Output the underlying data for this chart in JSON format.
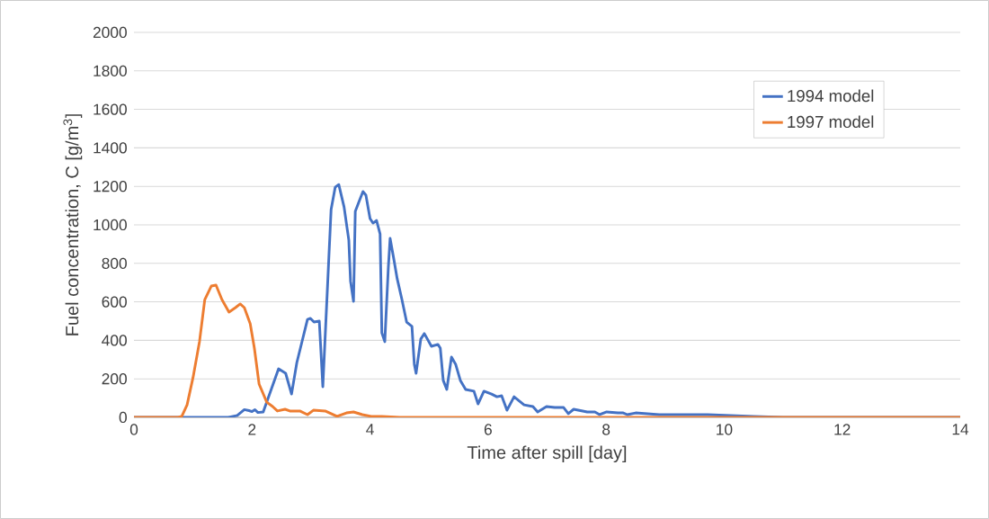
{
  "chart_data": {
    "type": "line",
    "xlabel": "Time after spill [day]",
    "ylabel": "Fuel concentration, C [g/m$^{3}$]",
    "xlim": [
      0,
      14
    ],
    "ylim": [
      0,
      2000
    ],
    "xticks": [
      0,
      2,
      4,
      6,
      8,
      10,
      12,
      14
    ],
    "yticks": [
      0,
      200,
      400,
      600,
      800,
      1000,
      1200,
      1400,
      1600,
      1800,
      2000
    ],
    "grid": "y",
    "legend": "top right",
    "line_style": "solid",
    "marker": "none",
    "series": [
      {
        "name": "1994 model",
        "color": "#4472c4",
        "x": [
          0,
          1.6,
          1.75,
          1.87,
          1.95,
          2.0,
          2.05,
          2.1,
          2.19,
          2.45,
          2.57,
          2.67,
          2.76,
          2.94,
          2.99,
          3.05,
          3.14,
          3.2,
          3.34,
          3.41,
          3.47,
          3.56,
          3.64,
          3.67,
          3.72,
          3.75,
          3.82,
          3.88,
          3.93,
          4.0,
          4.05,
          4.11,
          4.17,
          4.2,
          4.25,
          4.31,
          4.34,
          4.4,
          4.46,
          4.54,
          4.62,
          4.71,
          4.75,
          4.78,
          4.86,
          4.92,
          5.04,
          5.15,
          5.19,
          5.24,
          5.3,
          5.38,
          5.45,
          5.53,
          5.62,
          5.76,
          5.83,
          5.93,
          6.06,
          6.15,
          6.23,
          6.32,
          6.44,
          6.61,
          6.76,
          6.84,
          6.99,
          7.13,
          7.28,
          7.36,
          7.45,
          7.68,
          7.81,
          7.89,
          8.01,
          8.2,
          8.29,
          8.36,
          8.5,
          8.9,
          9.11,
          9.72,
          10.5,
          11,
          14
        ],
        "values": [
          0,
          0,
          10,
          40,
          35,
          30,
          40,
          25,
          28,
          252,
          229,
          121,
          285,
          509,
          514,
          495,
          500,
          159,
          1079,
          1196,
          1210,
          1093,
          921,
          706,
          603,
          1070,
          1126,
          1173,
          1154,
          1033,
          1009,
          1023,
          953,
          439,
          393,
          780,
          930,
          827,
          720,
          612,
          495,
          472,
          276,
          229,
          407,
          435,
          369,
          379,
          360,
          192,
          145,
          313,
          276,
          192,
          145,
          136,
          70,
          136,
          121,
          107,
          112,
          37,
          107,
          65,
          56,
          28,
          56,
          51,
          51,
          19,
          42,
          28,
          28,
          14,
          28,
          23,
          23,
          14,
          23,
          14,
          14,
          14,
          5,
          0,
          0
        ]
      },
      {
        "name": "1997 model",
        "color": "#ed7d31",
        "x": [
          0,
          0.75,
          0.81,
          0.9,
          1.0,
          1.11,
          1.2,
          1.31,
          1.39,
          1.49,
          1.61,
          1.72,
          1.8,
          1.87,
          1.97,
          2.04,
          2.12,
          2.25,
          2.35,
          2.43,
          2.56,
          2.64,
          2.81,
          2.94,
          3.04,
          3.24,
          3.44,
          3.6,
          3.72,
          3.87,
          4.02,
          4.2,
          4.5,
          14
        ],
        "values": [
          0,
          0,
          5,
          65,
          206,
          393,
          612,
          682,
          687,
          612,
          547,
          570,
          589,
          570,
          486,
          360,
          173,
          79,
          56,
          33,
          42,
          33,
          33,
          14,
          37,
          33,
          5,
          23,
          28,
          14,
          5,
          5,
          0,
          0
        ]
      }
    ]
  }
}
